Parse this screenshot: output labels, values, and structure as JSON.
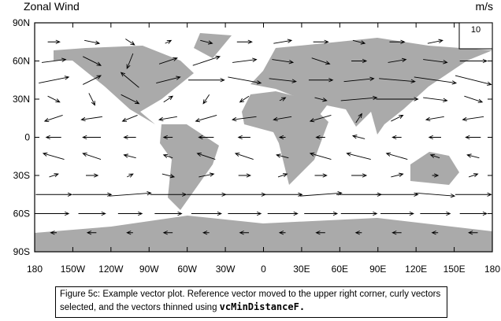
{
  "chart_data": {
    "type": "vector",
    "title": "Zonal Wind",
    "units": "m/s",
    "ref_magnitude": 10,
    "xlim": [
      -180,
      180
    ],
    "ylim": [
      -90,
      90
    ],
    "xticks": [
      {
        "value": -180,
        "label": "180"
      },
      {
        "value": -150,
        "label": "150W"
      },
      {
        "value": -120,
        "label": "120W"
      },
      {
        "value": -90,
        "label": "90W"
      },
      {
        "value": -60,
        "label": "60W"
      },
      {
        "value": -30,
        "label": "30W"
      },
      0,
      {
        "value": 30,
        "label": "30E"
      },
      {
        "value": 60,
        "label": "60E"
      },
      {
        "value": 90,
        "label": "90E"
      },
      {
        "value": 120,
        "label": "120E"
      },
      {
        "value": 150,
        "label": "150E"
      },
      180
    ],
    "yticks": [
      {
        "value": -90,
        "label": "90S"
      },
      {
        "value": -60,
        "label": "60S"
      },
      {
        "value": -30,
        "label": "30S"
      },
      0,
      {
        "value": 30,
        "label": "30N"
      },
      {
        "value": 60,
        "label": "60N"
      },
      {
        "value": 90,
        "label": "90N"
      }
    ],
    "color": "#000000",
    "lons": [
      -165,
      -135,
      -105,
      -75,
      -45,
      -15,
      15,
      45,
      75,
      105,
      135,
      165
    ],
    "lats": [
      75,
      60,
      45,
      30,
      15,
      0,
      -15,
      -30,
      -45,
      -60,
      -75
    ],
    "u": [
      [
        4,
        5,
        3,
        2,
        4,
        5,
        6,
        5,
        4,
        5,
        5,
        4
      ],
      [
        8,
        6,
        -2,
        6,
        9,
        8,
        7,
        6,
        5,
        6,
        8,
        9
      ],
      [
        10,
        6,
        -6,
        8,
        12,
        11,
        9,
        8,
        10,
        12,
        14,
        12
      ],
      [
        4,
        2,
        6,
        3,
        -2,
        -3,
        2,
        4,
        12,
        14,
        8,
        6
      ],
      [
        -6,
        -7,
        -5,
        -6,
        -7,
        -8,
        -6,
        -7,
        2,
        4,
        -6,
        -7
      ],
      [
        -5,
        -6,
        -4,
        -3,
        -5,
        -4,
        -2,
        -3,
        -4,
        -3,
        -4,
        -5
      ],
      [
        -7,
        -6,
        -4,
        -3,
        -6,
        -6,
        -4,
        -7,
        -8,
        -7,
        -3,
        -4
      ],
      [
        3,
        4,
        2,
        4,
        5,
        4,
        3,
        4,
        5,
        4,
        2,
        3
      ],
      [
        12,
        13,
        14,
        12,
        13,
        14,
        13,
        14,
        15,
        14,
        13,
        12
      ],
      [
        10,
        9,
        8,
        9,
        10,
        11,
        10,
        11,
        12,
        11,
        10,
        9
      ],
      [
        -2,
        -3,
        -2,
        -3,
        -2,
        -3,
        -2,
        -3,
        -2,
        -3,
        -2,
        -3
      ]
    ],
    "v": [
      [
        0,
        -1,
        -2,
        1,
        -1,
        0,
        1,
        0,
        -1,
        0,
        1,
        0
      ],
      [
        1,
        -3,
        -5,
        2,
        3,
        1,
        -1,
        -2,
        0,
        1,
        -1,
        0
      ],
      [
        2,
        3,
        5,
        2,
        0,
        -2,
        -1,
        0,
        1,
        -1,
        -2,
        -3
      ],
      [
        -2,
        -4,
        -3,
        2,
        -3,
        -2,
        1,
        -1,
        1,
        0,
        -1,
        -2
      ],
      [
        -2,
        -1,
        -2,
        -1,
        -2,
        -1,
        -1,
        -2,
        3,
        2,
        -1,
        -1
      ],
      [
        0,
        0,
        0,
        0,
        0,
        0,
        0,
        0,
        1,
        0,
        0,
        0
      ],
      [
        2,
        2,
        1,
        1,
        2,
        2,
        1,
        2,
        2,
        2,
        1,
        1
      ],
      [
        1,
        0,
        1,
        -1,
        1,
        0,
        1,
        0,
        0,
        1,
        0,
        1
      ],
      [
        0,
        0,
        1,
        0,
        0,
        0,
        0,
        1,
        0,
        0,
        -1,
        0
      ],
      [
        0,
        0,
        0,
        0,
        0,
        0,
        0,
        0,
        0,
        0,
        0,
        0
      ],
      [
        0,
        0,
        0,
        0,
        0,
        0,
        0,
        0,
        0,
        0,
        0,
        0
      ]
    ],
    "caption": "Figure 5c: Example vector plot. Reference vector moved to the upper right corner, curly vectors selected, and the vectors thinned using",
    "caption_code": "vcMinDistanceF."
  }
}
